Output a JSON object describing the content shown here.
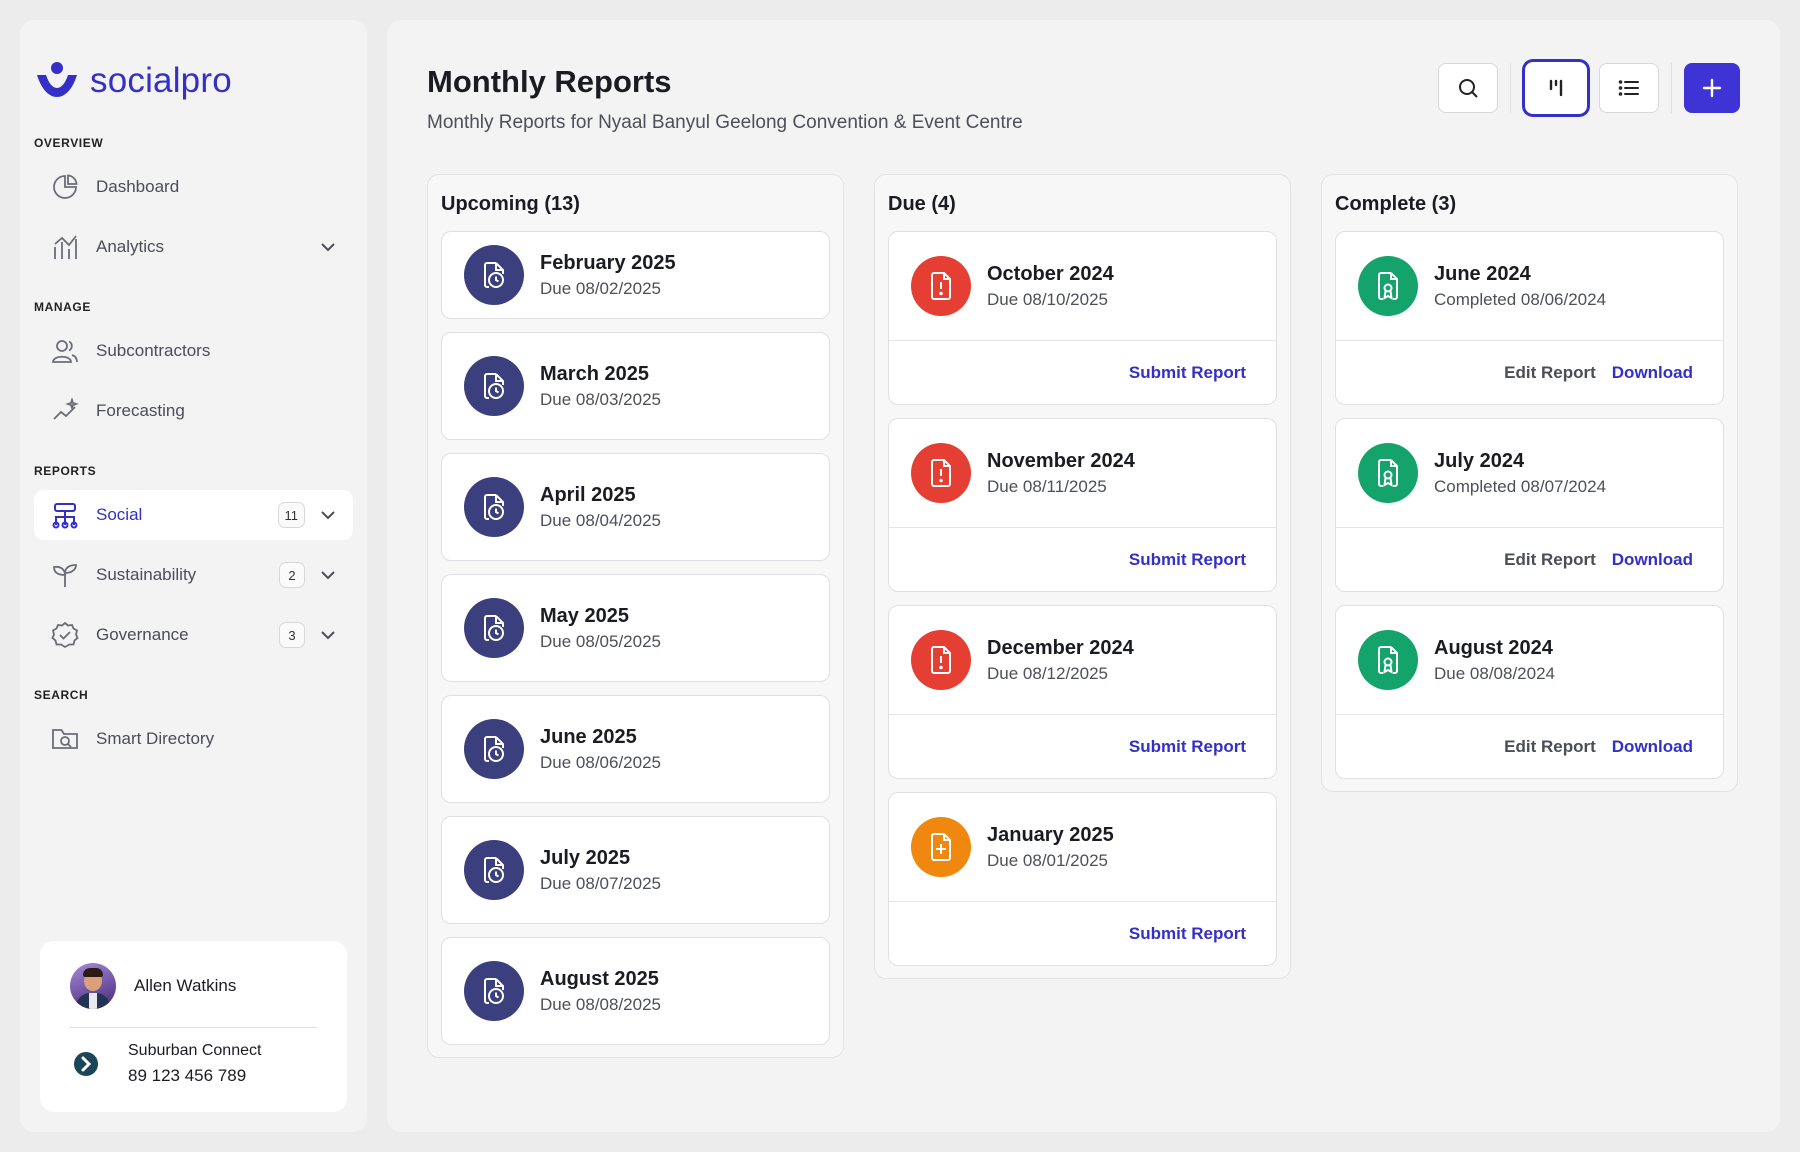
{
  "app": {
    "logo_text": "socialpro"
  },
  "sidebar": {
    "sections": [
      {
        "label": "OVERVIEW"
      },
      {
        "label": "MANAGE"
      },
      {
        "label": "REPORTS"
      },
      {
        "label": "SEARCH"
      }
    ],
    "items": {
      "dashboard": {
        "label": "Dashboard"
      },
      "analytics": {
        "label": "Analytics"
      },
      "subcontractors": {
        "label": "Subcontractors"
      },
      "forecasting": {
        "label": "Forecasting"
      },
      "social": {
        "label": "Social",
        "badge": "11"
      },
      "sustainability": {
        "label": "Sustainability",
        "badge": "2"
      },
      "governance": {
        "label": "Governance",
        "badge": "3"
      },
      "smart_directory": {
        "label": "Smart Directory"
      }
    },
    "user": {
      "name": "Allen Watkins",
      "org_name": "Suburban Connect",
      "org_phone": "89 123 456 789"
    }
  },
  "header": {
    "title": "Monthly Reports",
    "subtitle": "Monthly Reports for Nyaal Banyul Geelong Convention & Event Centre"
  },
  "columns": {
    "upcoming": {
      "title": "Upcoming (13)",
      "cards": [
        {
          "title": "February 2025",
          "sub": "Due 08/02/2025"
        },
        {
          "title": "March 2025",
          "sub": "Due 08/03/2025"
        },
        {
          "title": "April 2025",
          "sub": "Due 08/04/2025"
        },
        {
          "title": "May 2025",
          "sub": "Due 08/05/2025"
        },
        {
          "title": "June 2025",
          "sub": "Due 08/06/2025"
        },
        {
          "title": "July 2025",
          "sub": "Due 08/07/2025"
        },
        {
          "title": "August 2025",
          "sub": "Due 08/08/2025"
        }
      ]
    },
    "due": {
      "title": "Due (4)",
      "action_label": "Submit Report",
      "cards": [
        {
          "title": "October 2024",
          "sub": "Due 08/10/2025",
          "status": "overdue"
        },
        {
          "title": "November 2024",
          "sub": "Due 08/11/2025",
          "status": "overdue"
        },
        {
          "title": "December 2024",
          "sub": "Due 08/12/2025",
          "status": "overdue"
        },
        {
          "title": "January 2025",
          "sub": "Due 08/01/2025",
          "status": "due"
        }
      ]
    },
    "complete": {
      "title": "Complete (3)",
      "edit_label": "Edit Report",
      "download_label": "Download",
      "cards": [
        {
          "title": "June 2024",
          "sub": "Completed 08/06/2024"
        },
        {
          "title": "July 2024",
          "sub": "Completed 08/07/2024"
        },
        {
          "title": "August 2024",
          "sub": "Due 08/08/2024"
        }
      ]
    }
  },
  "colors": {
    "brand": "#3430c7",
    "upcoming": "#3b3f7e",
    "overdue": "#e53e33",
    "due": "#f0870e",
    "complete": "#14a36a"
  },
  "icons": {
    "upcoming": "file-clock-icon",
    "overdue": "file-alert-icon",
    "due": "file-plus-icon",
    "complete": "file-check-icon"
  }
}
